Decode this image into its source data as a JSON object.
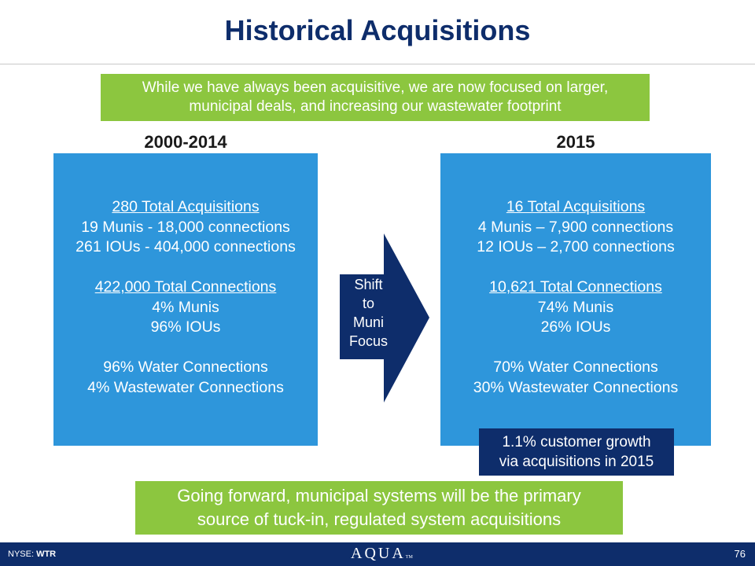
{
  "title": "Historical Acquisitions",
  "intro": {
    "line1": "While we have always been acquisitive, we are now focused on larger,",
    "line2": "municipal deals, and increasing our wastewater footprint"
  },
  "left": {
    "period": "2000-2014",
    "total_acquisitions": "280 Total Acquisitions",
    "munis": "19 Munis - 18,000 connections",
    "ious": "261 IOUs - 404,000 connections",
    "total_connections": "422,000 Total Connections",
    "munis_pct": "4% Munis",
    "ious_pct": "96% IOUs",
    "water": "96% Water Connections",
    "wastewater": "4% Wastewater Connections"
  },
  "right": {
    "period": "2015",
    "total_acquisitions": "16 Total Acquisitions",
    "munis": "4 Munis – 7,900 connections",
    "ious": "12 IOUs – 2,700 connections",
    "total_connections": "10,621 Total Connections",
    "munis_pct": "74% Munis",
    "ious_pct": "26% IOUs",
    "water": "70% Water Connections",
    "wastewater": "30% Wastewater Connections"
  },
  "arrow": {
    "line1": "Shift",
    "line2": "to",
    "line3": "Muni",
    "line4": "Focus"
  },
  "growth": {
    "line1": "1.1% customer growth",
    "line2": "via acquisitions in 2015"
  },
  "outro": {
    "line1": "Going forward, municipal systems will be the primary",
    "line2": "source of tuck-in, regulated system acquisitions"
  },
  "footer": {
    "exchange": "NYSE:",
    "ticker": "WTR",
    "logo": "AQUA",
    "logo_mark": "TM",
    "page_number": "76"
  },
  "colors": {
    "navy": "#0e2d6b",
    "blue": "#2e96db",
    "green": "#8cc63f"
  }
}
